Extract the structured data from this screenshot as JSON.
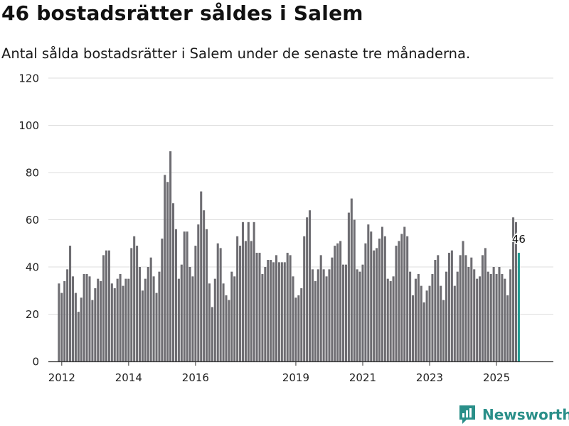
{
  "header": {
    "title": "46 bostadsrätter såldes i Salem",
    "subtitle": "Antal sålda bostadsrätter i Salem under de senaste tre månaderna."
  },
  "brand": {
    "name": "Newsworthy",
    "logo_icon": "newsworthy-logo-icon"
  },
  "colors": {
    "bar": "#6e6d72",
    "highlight": "#1f9a91",
    "grid": "#dddddd",
    "axis": "#333333",
    "brand": "#2a8f89"
  },
  "chart_data": {
    "type": "bar",
    "title": "46 bostadsrätter såldes i Salem",
    "subtitle": "Antal sålda bostadsrätter i Salem under de senaste tre månaderna.",
    "xlabel": "",
    "ylabel": "",
    "ylim": [
      0,
      120
    ],
    "yticks": [
      0,
      20,
      40,
      60,
      80,
      100,
      120
    ],
    "xlim": [
      2011.6,
      2026.7
    ],
    "xticks": [
      {
        "value": 2012,
        "label": "2012"
      },
      {
        "value": 2014,
        "label": "2014"
      },
      {
        "value": 2016,
        "label": "2016"
      },
      {
        "value": 2019,
        "label": "2019"
      },
      {
        "value": 2021,
        "label": "2021"
      },
      {
        "value": 2023,
        "label": "2023"
      },
      {
        "value": 2025,
        "label": "2025"
      }
    ],
    "grid": true,
    "start": "2011-12",
    "frequency": "monthly",
    "values": [
      33,
      29,
      34,
      39,
      49,
      36,
      29,
      21,
      27,
      37,
      37,
      36,
      26,
      31,
      35,
      34,
      45,
      47,
      47,
      33,
      31,
      35,
      37,
      32,
      35,
      35,
      48,
      53,
      49,
      40,
      30,
      35,
      40,
      44,
      36,
      29,
      38,
      52,
      79,
      76,
      89,
      67,
      56,
      35,
      41,
      55,
      55,
      40,
      36,
      49,
      58,
      72,
      64,
      56,
      33,
      23,
      35,
      50,
      48,
      33,
      28,
      26,
      38,
      36,
      53,
      49,
      59,
      51,
      59,
      51,
      59,
      46,
      46,
      37,
      40,
      43,
      43,
      42,
      45,
      42,
      42,
      42,
      46,
      45,
      36,
      27,
      28,
      31,
      53,
      61,
      64,
      39,
      34,
      39,
      45,
      39,
      36,
      39,
      44,
      49,
      50,
      51,
      41,
      41,
      63,
      69,
      60,
      39,
      38,
      41,
      50,
      58,
      55,
      47,
      48,
      52,
      57,
      53,
      35,
      34,
      36,
      49,
      51,
      54,
      57,
      53,
      38,
      28,
      35,
      37,
      32,
      25,
      30,
      32,
      37,
      43,
      45,
      32,
      26,
      38,
      46,
      47,
      32,
      38,
      45,
      51,
      45,
      40,
      44,
      39,
      35,
      36,
      45,
      48,
      38,
      37,
      40,
      37,
      40,
      37,
      35,
      28,
      39,
      61,
      59,
      46
    ],
    "highlight": {
      "label": "46",
      "index": 165
    }
  }
}
